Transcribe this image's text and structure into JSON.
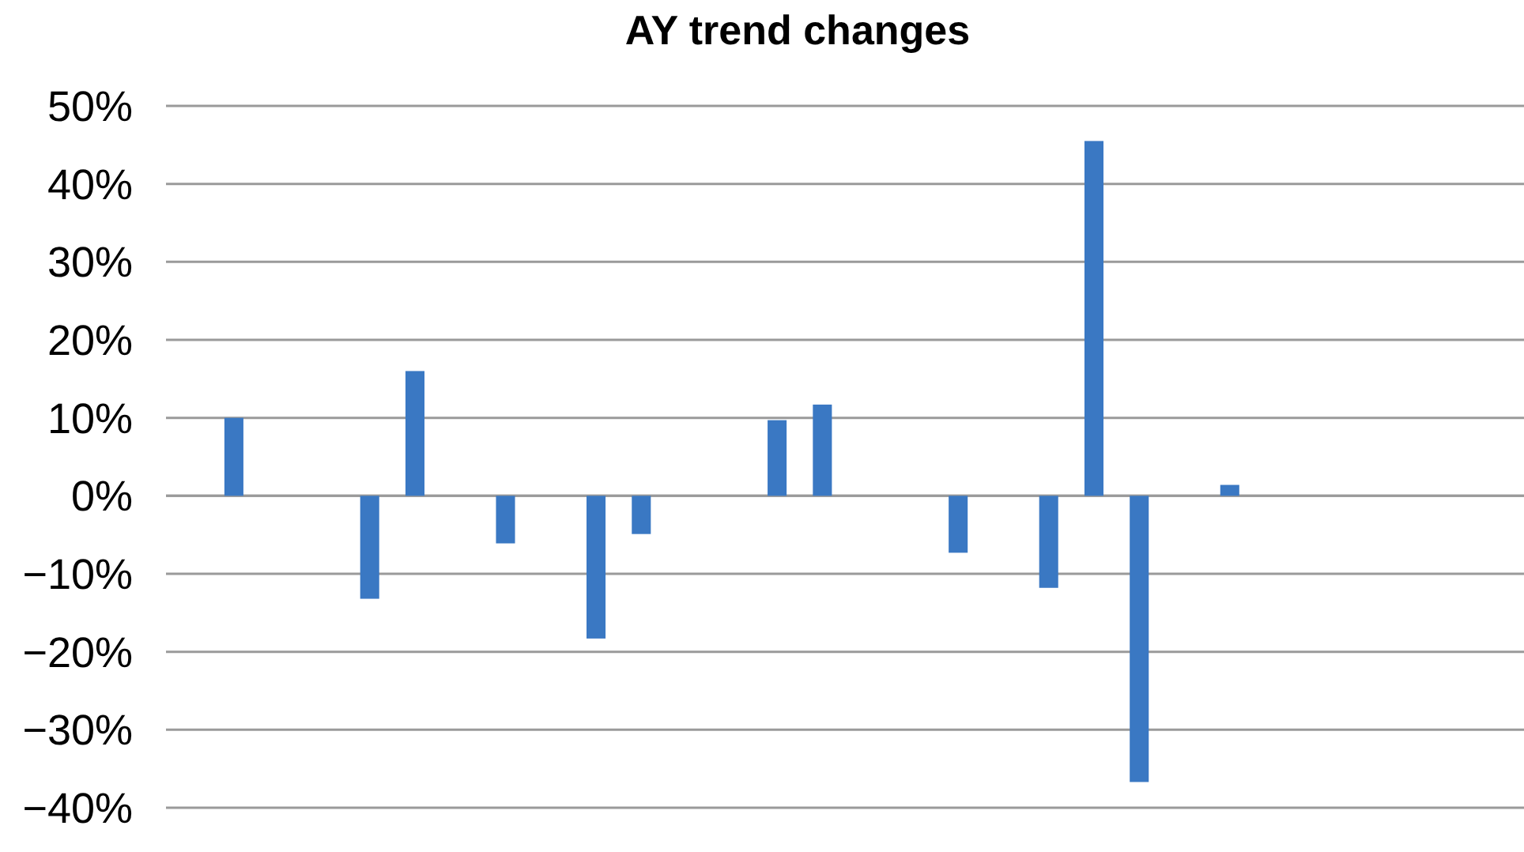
{
  "chart_data": {
    "type": "bar",
    "title": "AY trend changes",
    "categories": [
      null,
      null,
      null,
      null,
      null,
      null,
      null,
      null,
      null,
      null,
      null,
      null,
      null,
      null,
      null,
      null,
      null,
      null,
      null,
      null,
      null,
      null,
      null,
      null,
      null,
      null,
      null,
      null,
      null,
      null
    ],
    "values": [
      null,
      10,
      null,
      null,
      -13.2,
      16,
      null,
      -6.1,
      null,
      -18.3,
      -4.9,
      null,
      null,
      9.7,
      11.7,
      null,
      null,
      -7.3,
      null,
      -11.8,
      45.5,
      -36.7,
      null,
      1.4,
      null,
      null,
      null,
      null,
      null,
      null
    ],
    "color": "#3a78c3",
    "ylim": [
      -40,
      50
    ],
    "yticks": [
      {
        "value": -40,
        "label": "−40%"
      },
      {
        "value": -30,
        "label": "−30%"
      },
      {
        "value": -20,
        "label": "−20%"
      },
      {
        "value": -10,
        "label": "−10%"
      },
      {
        "value": 0,
        "label": "0%"
      },
      {
        "value": 10,
        "label": "10%"
      },
      {
        "value": 20,
        "label": "20%"
      },
      {
        "value": 30,
        "label": "30%"
      },
      {
        "value": 40,
        "label": "40%"
      },
      {
        "value": 50,
        "label": "50%"
      }
    ],
    "grid": "y",
    "tick_labels": "y"
  }
}
